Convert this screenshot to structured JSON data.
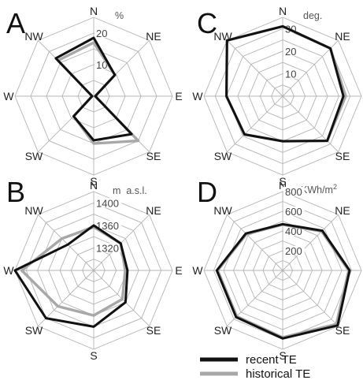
{
  "legend": {
    "recent_label": "recent TE",
    "historical_label": "historical TE",
    "recent_color": "#111111",
    "historical_color": "#a8a8a8"
  },
  "chart_data": [
    {
      "type": "radar",
      "panel": "A",
      "unit": "%",
      "directions": [
        "N",
        "NE",
        "E",
        "SE",
        "S",
        "SW",
        "W",
        "NW"
      ],
      "tick_labels": [
        "10",
        "20"
      ],
      "rings": [
        5,
        10,
        15,
        20,
        25
      ],
      "rmin": 0,
      "rmax": 25,
      "series": [
        {
          "name": "recent TE",
          "values": [
            18.5,
            9.5,
            0.5,
            17,
            14,
            9,
            0.5,
            17
          ]
        },
        {
          "name": "historical TE",
          "values": [
            17,
            9.5,
            0.5,
            20,
            15,
            9,
            0.5,
            16
          ]
        }
      ]
    },
    {
      "type": "radar",
      "panel": "B",
      "unit": "m  a.s.l.",
      "directions": [
        "N",
        "NE",
        "E",
        "SE",
        "S",
        "SW",
        "W",
        "NW"
      ],
      "tick_labels": [
        "1320",
        "1360",
        "1400"
      ],
      "rings": [
        1300,
        1320,
        1340,
        1360,
        1380,
        1400,
        1420
      ],
      "rmin": 1280,
      "rmax": 1420,
      "series": [
        {
          "name": "recent TE",
          "values": [
            1360,
            1348,
            1340,
            1360,
            1380,
            1400,
            1420,
            1345
          ]
        },
        {
          "name": "historical TE",
          "values": [
            1357,
            1348,
            1336,
            1352,
            1360,
            1370,
            1408,
            1360
          ]
        }
      ]
    },
    {
      "type": "radar",
      "panel": "C",
      "unit": "deg.",
      "directions": [
        "N",
        "NE",
        "E",
        "SE",
        "S",
        "SW",
        "W",
        "NW"
      ],
      "tick_labels": [
        "10",
        "20",
        "30"
      ],
      "rings": [
        5,
        10,
        15,
        20,
        25,
        30,
        35
      ],
      "rmin": 0,
      "rmax": 35,
      "series": [
        {
          "name": "recent TE",
          "values": [
            31,
            30,
            27,
            28,
            20,
            24,
            25,
            35
          ]
        },
        {
          "name": "historical TE",
          "values": [
            31,
            30,
            28,
            28,
            20,
            24,
            25,
            35
          ]
        }
      ]
    },
    {
      "type": "radar",
      "panel": "D",
      "unit": "KWh/m",
      "unit_sup": "2",
      "directions": [
        "N",
        "NE",
        "E",
        "SE",
        "S",
        "SW",
        "W",
        "NW"
      ],
      "tick_labels": [
        "200",
        "400",
        "600",
        "800"
      ],
      "rings": [
        100,
        200,
        300,
        400,
        500,
        600,
        700,
        800
      ],
      "rmin": 0,
      "rmax": 800,
      "series": [
        {
          "name": "recent TE",
          "values": [
            470,
            570,
            680,
            790,
            690,
            670,
            670,
            530
          ]
        },
        {
          "name": "historical TE",
          "values": [
            465,
            560,
            670,
            770,
            680,
            660,
            660,
            520
          ]
        }
      ]
    }
  ]
}
